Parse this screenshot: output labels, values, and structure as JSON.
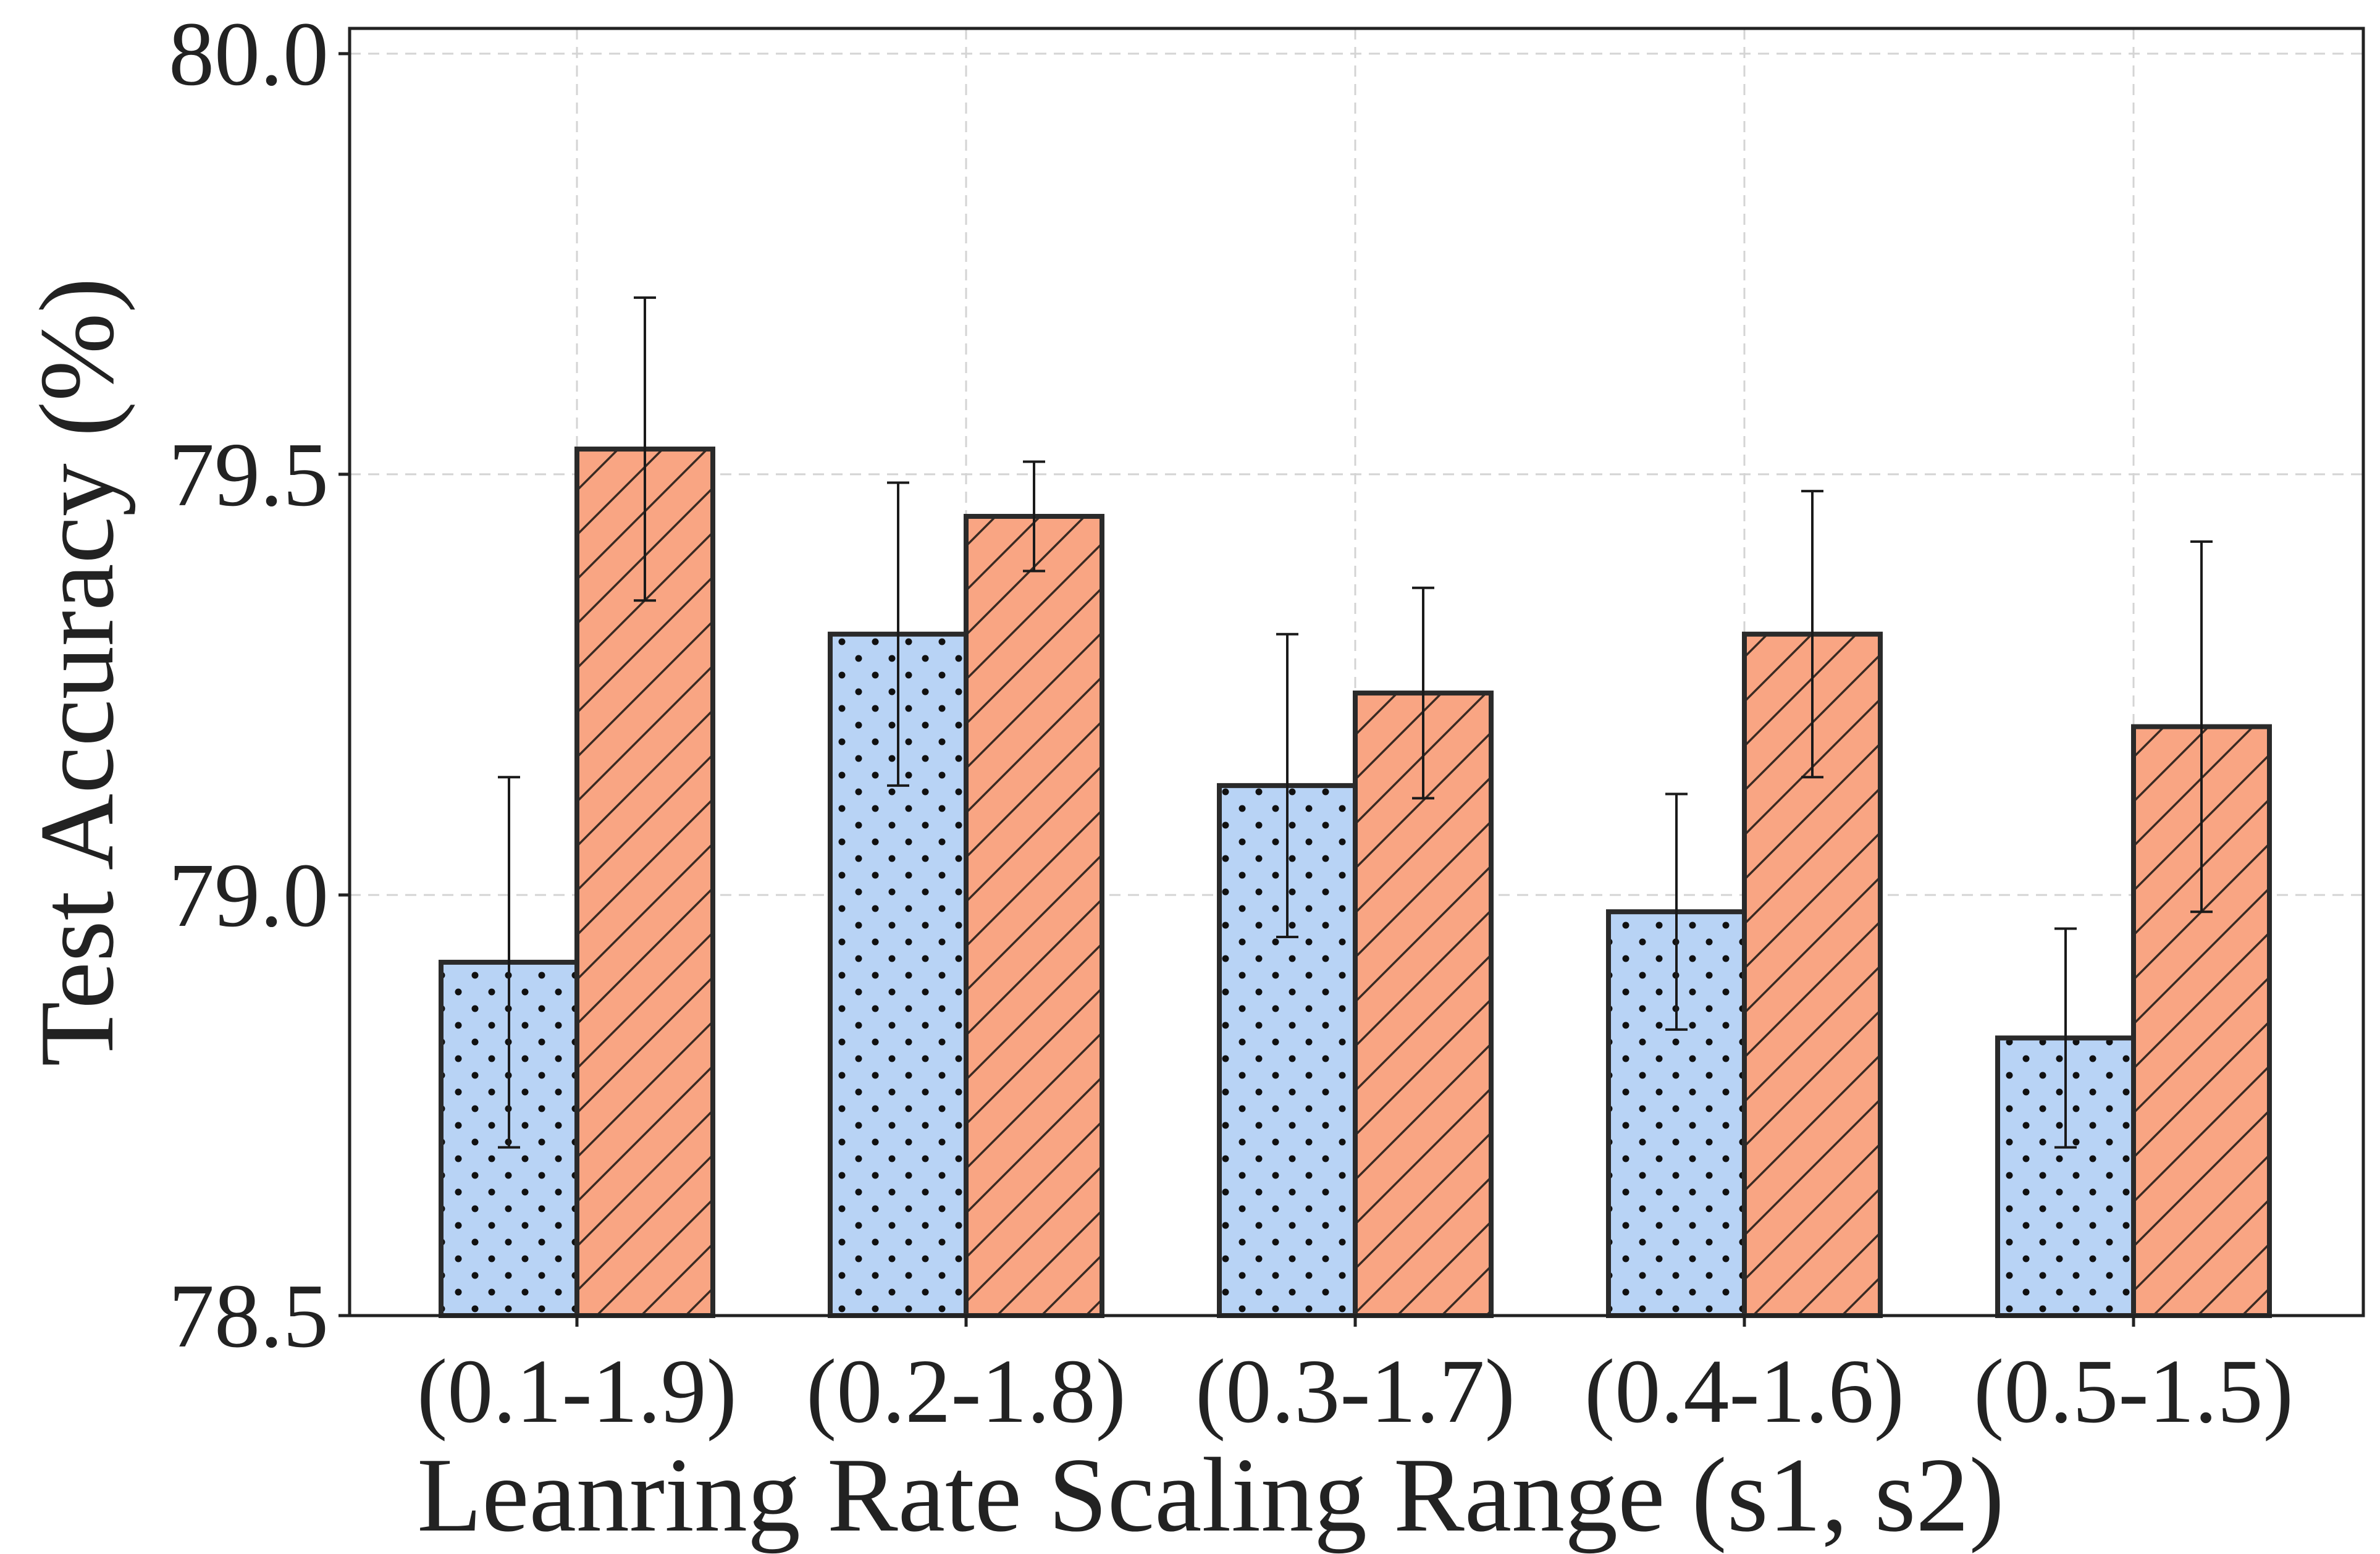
{
  "chart_data": {
    "type": "bar",
    "title": "",
    "xlabel": "Leanring Rate Scaling Range (s1, s2)",
    "ylabel": "Test Accuracy (%)",
    "ylim": [
      78.5,
      80.03
    ],
    "yticks": [
      78.5,
      79.0,
      79.5,
      80.0
    ],
    "ytick_labels": [
      "78.5",
      "79.0",
      "79.5",
      "80.0"
    ],
    "grid": true,
    "legend": "none",
    "categories": [
      "(0.1-1.9)",
      "(0.2-1.8)",
      "(0.3-1.7)",
      "(0.4-1.6)",
      "(0.5-1.5)"
    ],
    "series": [
      {
        "name": "series-1",
        "color": "#b8d3f5",
        "pattern": "dots",
        "values": [
          78.92,
          79.31,
          79.13,
          78.98,
          78.83
        ],
        "error": [
          0.22,
          0.18,
          0.18,
          0.14,
          0.13
        ]
      },
      {
        "name": "series-2",
        "color": "#f9a583",
        "pattern": "hatch",
        "values": [
          79.53,
          79.45,
          79.24,
          79.31,
          79.2
        ],
        "error": [
          0.18,
          0.065,
          0.125,
          0.17,
          0.22
        ]
      }
    ]
  }
}
